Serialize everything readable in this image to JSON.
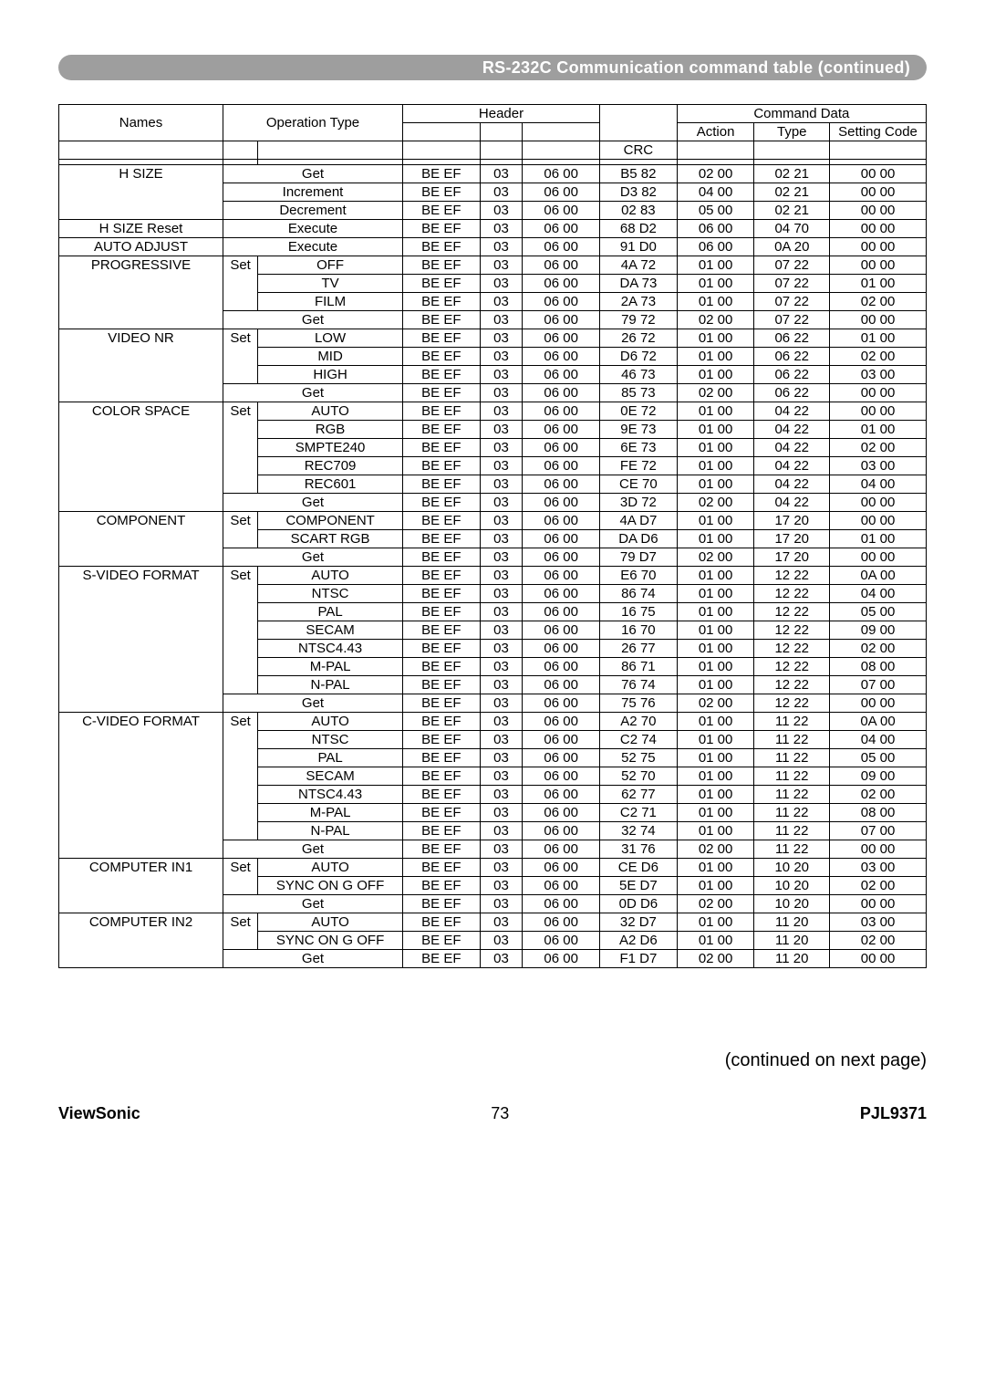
{
  "title": "RS-232C Communication command table (continued)",
  "header": {
    "names": "Names",
    "operation_type": "Operation Type",
    "header": "Header",
    "command_data": "Command Data",
    "crc": "CRC",
    "action": "Action",
    "type": "Type",
    "setting_code": "Setting Code"
  },
  "continued": "(continued on next page)",
  "footer": {
    "brand": "ViewSonic",
    "page": "73",
    "model": "PJL9371"
  },
  "groups": [
    {
      "name": "H SIZE",
      "rows": [
        {
          "op1": "",
          "op2": "Get",
          "span": 2,
          "h1": "BE  EF",
          "h2": "03",
          "h3": "06  00",
          "crc": "B5  82",
          "act": "02  00",
          "type": "02  21",
          "sc": "00  00"
        },
        {
          "op1": "",
          "op2": "Increment",
          "span": 2,
          "h1": "BE  EF",
          "h2": "03",
          "h3": "06  00",
          "crc": "D3  82",
          "act": "04  00",
          "type": "02  21",
          "sc": "00  00"
        },
        {
          "op1": "",
          "op2": "Decrement",
          "span": 2,
          "h1": "BE  EF",
          "h2": "03",
          "h3": "06  00",
          "crc": "02  83",
          "act": "05  00",
          "type": "02  21",
          "sc": "00  00"
        }
      ]
    },
    {
      "name": "H SIZE Reset",
      "rows": [
        {
          "op1": "",
          "op2": "Execute",
          "span": 2,
          "h1": "BE  EF",
          "h2": "03",
          "h3": "06  00",
          "crc": "68  D2",
          "act": "06  00",
          "type": "04  70",
          "sc": "00  00"
        }
      ]
    },
    {
      "name": "AUTO ADJUST",
      "rows": [
        {
          "op1": "",
          "op2": "Execute",
          "span": 2,
          "h1": "BE  EF",
          "h2": "03",
          "h3": "06  00",
          "crc": "91  D0",
          "act": "06  00",
          "type": "0A  20",
          "sc": "00  00"
        }
      ]
    },
    {
      "name": "PROGRESSIVE",
      "rows": [
        {
          "op1": "Set",
          "op2": "OFF",
          "span": 1,
          "setspan": 3,
          "h1": "BE  EF",
          "h2": "03",
          "h3": "06  00",
          "crc": "4A  72",
          "act": "01  00",
          "type": "07  22",
          "sc": "00  00"
        },
        {
          "op1": "",
          "op2": "TV",
          "span": 1,
          "h1": "BE  EF",
          "h2": "03",
          "h3": "06  00",
          "crc": "DA  73",
          "act": "01  00",
          "type": "07  22",
          "sc": "01  00"
        },
        {
          "op1": "",
          "op2": "FILM",
          "span": 1,
          "h1": "BE  EF",
          "h2": "03",
          "h3": "06  00",
          "crc": "2A  73",
          "act": "01  00",
          "type": "07  22",
          "sc": "02  00"
        },
        {
          "op1": "",
          "op2": "Get",
          "span": 2,
          "h1": "BE  EF",
          "h2": "03",
          "h3": "06  00",
          "crc": "79  72",
          "act": "02  00",
          "type": "07  22",
          "sc": "00  00"
        }
      ]
    },
    {
      "name": "VIDEO NR",
      "rows": [
        {
          "op1": "Set",
          "op2": "LOW",
          "span": 1,
          "setspan": 3,
          "h1": "BE  EF",
          "h2": "03",
          "h3": "06  00",
          "crc": "26  72",
          "act": "01  00",
          "type": "06  22",
          "sc": "01  00"
        },
        {
          "op1": "",
          "op2": "MID",
          "span": 1,
          "h1": "BE  EF",
          "h2": "03",
          "h3": "06  00",
          "crc": "D6  72",
          "act": "01  00",
          "type": "06  22",
          "sc": "02  00"
        },
        {
          "op1": "",
          "op2": "HIGH",
          "span": 1,
          "h1": "BE  EF",
          "h2": "03",
          "h3": "06  00",
          "crc": "46  73",
          "act": "01  00",
          "type": "06  22",
          "sc": "03  00"
        },
        {
          "op1": "",
          "op2": "Get",
          "span": 2,
          "h1": "BE  EF",
          "h2": "03",
          "h3": "06  00",
          "crc": "85  73",
          "act": "02  00",
          "type": "06  22",
          "sc": "00  00"
        }
      ]
    },
    {
      "name": "COLOR SPACE",
      "rows": [
        {
          "op1": "Set",
          "op2": "AUTO",
          "span": 1,
          "setspan": 5,
          "h1": "BE  EF",
          "h2": "03",
          "h3": "06  00",
          "crc": "0E  72",
          "act": "01  00",
          "type": "04  22",
          "sc": "00  00"
        },
        {
          "op1": "",
          "op2": "RGB",
          "span": 1,
          "h1": "BE  EF",
          "h2": "03",
          "h3": "06  00",
          "crc": "9E  73",
          "act": "01  00",
          "type": "04  22",
          "sc": "01  00"
        },
        {
          "op1": "",
          "op2": "SMPTE240",
          "span": 1,
          "h1": "BE  EF",
          "h2": "03",
          "h3": "06  00",
          "crc": "6E  73",
          "act": "01  00",
          "type": "04  22",
          "sc": "02  00"
        },
        {
          "op1": "",
          "op2": "REC709",
          "span": 1,
          "h1": "BE  EF",
          "h2": "03",
          "h3": "06  00",
          "crc": "FE  72",
          "act": "01  00",
          "type": "04  22",
          "sc": "03  00"
        },
        {
          "op1": "",
          "op2": "REC601",
          "span": 1,
          "h1": "BE  EF",
          "h2": "03",
          "h3": "06  00",
          "crc": "CE  70",
          "act": "01  00",
          "type": "04  22",
          "sc": "04  00"
        },
        {
          "op1": "",
          "op2": "Get",
          "span": 2,
          "h1": "BE  EF",
          "h2": "03",
          "h3": "06  00",
          "crc": "3D  72",
          "act": "02  00",
          "type": "04  22",
          "sc": "00  00"
        }
      ]
    },
    {
      "name": "COMPONENT",
      "rows": [
        {
          "op1": "Set",
          "op2": "COMPONENT",
          "span": 1,
          "setspan": 2,
          "h1": "BE  EF",
          "h2": "03",
          "h3": "06  00",
          "crc": "4A  D7",
          "act": "01  00",
          "type": "17  20",
          "sc": "00  00"
        },
        {
          "op1": "",
          "op2": "SCART RGB",
          "span": 1,
          "h1": "BE  EF",
          "h2": "03",
          "h3": "06  00",
          "crc": "DA  D6",
          "act": "01  00",
          "type": "17  20",
          "sc": "01  00"
        },
        {
          "op1": "",
          "op2": "Get",
          "span": 2,
          "h1": "BE  EF",
          "h2": "03",
          "h3": "06  00",
          "crc": "79  D7",
          "act": "02  00",
          "type": "17  20",
          "sc": "00  00"
        }
      ]
    },
    {
      "name": "S-VIDEO FORMAT",
      "rows": [
        {
          "op1": "Set",
          "op2": "AUTO",
          "span": 1,
          "setspan": 7,
          "h1": "BE  EF",
          "h2": "03",
          "h3": "06  00",
          "crc": "E6  70",
          "act": "01  00",
          "type": "12  22",
          "sc": "0A  00"
        },
        {
          "op1": "",
          "op2": "NTSC",
          "span": 1,
          "h1": "BE  EF",
          "h2": "03",
          "h3": "06  00",
          "crc": "86  74",
          "act": "01  00",
          "type": "12  22",
          "sc": "04  00"
        },
        {
          "op1": "",
          "op2": "PAL",
          "span": 1,
          "h1": "BE  EF",
          "h2": "03",
          "h3": "06  00",
          "crc": "16  75",
          "act": "01  00",
          "type": "12  22",
          "sc": "05  00"
        },
        {
          "op1": "",
          "op2": "SECAM",
          "span": 1,
          "h1": "BE  EF",
          "h2": "03",
          "h3": "06  00",
          "crc": "16  70",
          "act": "01  00",
          "type": "12  22",
          "sc": "09  00"
        },
        {
          "op1": "",
          "op2": "NTSC4.43",
          "span": 1,
          "h1": "BE  EF",
          "h2": "03",
          "h3": "06  00",
          "crc": "26  77",
          "act": "01  00",
          "type": "12  22",
          "sc": "02  00"
        },
        {
          "op1": "",
          "op2": "M-PAL",
          "span": 1,
          "h1": "BE  EF",
          "h2": "03",
          "h3": "06  00",
          "crc": "86  71",
          "act": "01  00",
          "type": "12  22",
          "sc": "08  00"
        },
        {
          "op1": "",
          "op2": "N-PAL",
          "span": 1,
          "h1": "BE  EF",
          "h2": "03",
          "h3": "06  00",
          "crc": "76  74",
          "act": "01  00",
          "type": "12  22",
          "sc": "07  00"
        },
        {
          "op1": "",
          "op2": "Get",
          "span": 2,
          "h1": "BE  EF",
          "h2": "03",
          "h3": "06  00",
          "crc": "75  76",
          "act": "02  00",
          "type": "12  22",
          "sc": "00  00"
        }
      ]
    },
    {
      "name": "C-VIDEO FORMAT",
      "rows": [
        {
          "op1": "Set",
          "op2": "AUTO",
          "span": 1,
          "setspan": 7,
          "h1": "BE  EF",
          "h2": "03",
          "h3": "06  00",
          "crc": "A2  70",
          "act": "01  00",
          "type": "11  22",
          "sc": "0A  00"
        },
        {
          "op1": "",
          "op2": "NTSC",
          "span": 1,
          "h1": "BE  EF",
          "h2": "03",
          "h3": "06  00",
          "crc": "C2  74",
          "act": "01  00",
          "type": "11  22",
          "sc": "04  00"
        },
        {
          "op1": "",
          "op2": "PAL",
          "span": 1,
          "h1": "BE  EF",
          "h2": "03",
          "h3": "06  00",
          "crc": "52  75",
          "act": "01  00",
          "type": "11  22",
          "sc": "05  00"
        },
        {
          "op1": "",
          "op2": "SECAM",
          "span": 1,
          "h1": "BE  EF",
          "h2": "03",
          "h3": "06  00",
          "crc": "52  70",
          "act": "01  00",
          "type": "11  22",
          "sc": "09  00"
        },
        {
          "op1": "",
          "op2": "NTSC4.43",
          "span": 1,
          "h1": "BE  EF",
          "h2": "03",
          "h3": "06  00",
          "crc": "62  77",
          "act": "01  00",
          "type": "11  22",
          "sc": "02  00"
        },
        {
          "op1": "",
          "op2": "M-PAL",
          "span": 1,
          "h1": "BE  EF",
          "h2": "03",
          "h3": "06  00",
          "crc": "C2  71",
          "act": "01  00",
          "type": "11  22",
          "sc": "08  00"
        },
        {
          "op1": "",
          "op2": "N-PAL",
          "span": 1,
          "h1": "BE  EF",
          "h2": "03",
          "h3": "06  00",
          "crc": "32  74",
          "act": "01  00",
          "type": "11  22",
          "sc": "07  00"
        },
        {
          "op1": "",
          "op2": "Get",
          "span": 2,
          "h1": "BE  EF",
          "h2": "03",
          "h3": "06  00",
          "crc": "31  76",
          "act": "02  00",
          "type": "11  22",
          "sc": "00  00"
        }
      ]
    },
    {
      "name": "COMPUTER IN1",
      "rows": [
        {
          "op1": "Set",
          "op2": "AUTO",
          "span": 1,
          "setspan": 2,
          "h1": "BE  EF",
          "h2": "03",
          "h3": "06  00",
          "crc": "CE  D6",
          "act": "01  00",
          "type": "10  20",
          "sc": "03  00"
        },
        {
          "op1": "",
          "op2": "SYNC ON G OFF",
          "span": 1,
          "h1": "BE  EF",
          "h2": "03",
          "h3": "06  00",
          "crc": "5E  D7",
          "act": "01  00",
          "type": "10  20",
          "sc": "02  00"
        },
        {
          "op1": "",
          "op2": "Get",
          "span": 2,
          "h1": "BE  EF",
          "h2": "03",
          "h3": "06  00",
          "crc": "0D  D6",
          "act": "02  00",
          "type": "10  20",
          "sc": "00  00"
        }
      ]
    },
    {
      "name": "COMPUTER IN2",
      "rows": [
        {
          "op1": "Set",
          "op2": "AUTO",
          "span": 1,
          "setspan": 2,
          "h1": "BE  EF",
          "h2": "03",
          "h3": "06  00",
          "crc": "32  D7",
          "act": "01  00",
          "type": "11  20",
          "sc": "03  00"
        },
        {
          "op1": "",
          "op2": "SYNC ON G OFF",
          "span": 1,
          "h1": "BE  EF",
          "h2": "03",
          "h3": "06  00",
          "crc": "A2  D6",
          "act": "01  00",
          "type": "11  20",
          "sc": "02  00"
        },
        {
          "op1": "",
          "op2": "Get",
          "span": 2,
          "h1": "BE  EF",
          "h2": "03",
          "h3": "06  00",
          "crc": "F1  D7",
          "act": "02  00",
          "type": "11  20",
          "sc": "00  00"
        }
      ]
    }
  ]
}
